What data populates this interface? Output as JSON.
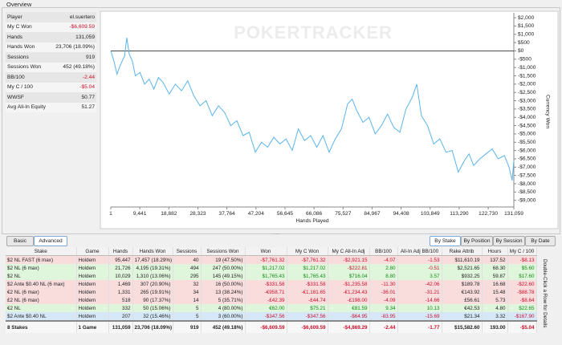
{
  "overview": {
    "title": "Overview",
    "stats": [
      [
        "Player",
        "el.suertero"
      ],
      [
        "My C Won",
        "-$6,609.59"
      ],
      [
        "Hands",
        "131,059"
      ],
      [
        "Hands Won",
        "23,706 (18.09%)"
      ],
      [
        "Sessions",
        "919"
      ],
      [
        "Sessions Won",
        "452 (49.18%)"
      ],
      [
        "BB/100",
        "-2.44"
      ],
      [
        "My C / 100",
        "-$5.04"
      ],
      [
        "WWSF",
        "50.77"
      ],
      [
        "Avg All-In Equity",
        "51.27"
      ]
    ]
  },
  "chart_data": {
    "type": "line",
    "watermark": "POKERTRACKER",
    "x_label": "Hands Played",
    "y_label": "Currency Won",
    "grid": false,
    "xlim": [
      1,
      131059
    ],
    "ylim": [
      -9400,
      2100
    ],
    "xticks": [
      1,
      {
        "value": 9441,
        "label": "9,441"
      },
      {
        "value": 18882,
        "label": "18,882"
      },
      {
        "value": 28323,
        "label": "28,323"
      },
      {
        "value": 37764,
        "label": "37,764"
      },
      {
        "value": 47204,
        "label": "47,204"
      },
      {
        "value": 56645,
        "label": "56,645"
      },
      {
        "value": 66086,
        "label": "66,086"
      },
      {
        "value": 75527,
        "label": "75,527"
      },
      {
        "value": 84967,
        "label": "84,967"
      },
      {
        "value": 94408,
        "label": "94,408"
      },
      {
        "value": 103849,
        "label": "103,849"
      },
      {
        "value": 113290,
        "label": "113,290"
      },
      {
        "value": 122730,
        "label": "122,730"
      },
      {
        "value": 131059,
        "label": "131,059"
      }
    ],
    "yticks": [
      {
        "value": 2000,
        "label": "$2,000"
      },
      {
        "value": 1500,
        "label": "$1,500"
      },
      {
        "value": 1000,
        "label": "$1,000"
      },
      {
        "value": 500,
        "label": "$500"
      },
      {
        "value": 0,
        "label": "$0"
      },
      {
        "value": -500,
        "label": "-$500"
      },
      {
        "value": -1000,
        "label": "-$1,000"
      },
      {
        "value": -1500,
        "label": "-$1,500"
      },
      {
        "value": -2000,
        "label": "-$2,000"
      },
      {
        "value": -2500,
        "label": "-$2,500"
      },
      {
        "value": -3000,
        "label": "-$3,000"
      },
      {
        "value": -3500,
        "label": "-$3,500"
      },
      {
        "value": -4000,
        "label": "-$4,000"
      },
      {
        "value": -4500,
        "label": "-$4,500"
      },
      {
        "value": -5000,
        "label": "-$5,000"
      },
      {
        "value": -5500,
        "label": "-$5,500"
      },
      {
        "value": -6000,
        "label": "-$6,000"
      },
      {
        "value": -6500,
        "label": "-$6,500"
      },
      {
        "value": -7000,
        "label": "-$7,000"
      },
      {
        "value": -7500,
        "label": "-$7,500"
      },
      {
        "value": -8000,
        "label": "-$8,000"
      },
      {
        "value": -8500,
        "label": "-$8,500"
      },
      {
        "value": -9000,
        "label": "-$9,000"
      }
    ],
    "series": [
      {
        "color": "#5ab4ec",
        "x": [
          1,
          1000,
          2000,
          3000,
          4500,
          5200,
          6000,
          7000,
          8000,
          9500,
          11000,
          12500,
          14000,
          15500,
          17000,
          19000,
          21000,
          23000,
          25000,
          27000,
          29000,
          31000,
          33000,
          35000,
          37000,
          39000,
          41000,
          43000,
          45000,
          47000,
          49000,
          51000,
          53000,
          55000,
          57000,
          59000,
          61000,
          63000,
          65000,
          67000,
          69000,
          71000,
          73000,
          75000,
          77000,
          78500,
          80000,
          82000,
          84000,
          86000,
          88000,
          90000,
          92000,
          94000,
          96000,
          98000,
          99500,
          101000,
          103000,
          105000,
          107000,
          109000,
          111000,
          113000,
          115000,
          116500,
          118000,
          120000,
          122000,
          124000,
          126000,
          128000,
          129500,
          130500,
          131059
        ],
        "values": [
          0,
          -600,
          -1400,
          -900,
          -300,
          800,
          -200,
          -600,
          -1500,
          -1300,
          -2000,
          -1700,
          -2300,
          -1600,
          -1900,
          -2600,
          -2000,
          -2400,
          -1800,
          -2700,
          -3300,
          -3000,
          -3900,
          -3300,
          -3700,
          -4500,
          -4200,
          -5100,
          -4900,
          -6100,
          -5500,
          -5800,
          -5200,
          -5600,
          -5300,
          -6000,
          -4700,
          -5400,
          -5100,
          -5800,
          -5100,
          -6100,
          -5300,
          -4700,
          -3200,
          -2900,
          -3600,
          -4300,
          -4000,
          -5000,
          -4500,
          -3800,
          -4600,
          -4900,
          -3500,
          -2800,
          -2000,
          -3900,
          -4500,
          -5600,
          -5300,
          -6100,
          -6000,
          -7300,
          -6600,
          -6200,
          -6900,
          -6500,
          -6200,
          -5900,
          -6500,
          -6300,
          -7000,
          -7800,
          -6600
        ]
      }
    ]
  },
  "controls": {
    "left": [
      "Basic",
      "Advanced"
    ],
    "right": [
      "By Stake",
      "By Position",
      "By Session",
      "By Date"
    ]
  },
  "table": {
    "side_note": "Double-Click a Row for Details",
    "columns": [
      "Stake",
      "Game",
      "Hands",
      "Hands Won",
      "Sessions",
      "Sessions Won",
      "Won",
      "My C Won",
      "My C All-In Adj",
      "BB/100",
      "All-In Adj BB/100",
      "Rake Attrib",
      "Hours",
      "My C / 100"
    ],
    "rows": [
      {
        "bg": "#f9dcdc",
        "cells": [
          "$2 NL FAST (6 max)",
          "Holdem",
          "95,447",
          "17,457 (18.29%)",
          "40",
          "19 (47.50%)",
          "-$7,761.32",
          "-$7,761.32",
          "-$2,921.15",
          "-4.07",
          "-1.53",
          "$11,610.19",
          "137.52",
          "-$8.13"
        ]
      },
      {
        "bg": "#dff5dc",
        "cells": [
          "$2 NL (6 max)",
          "Holdem",
          "21,726",
          "4,195 (19.31%)",
          "494",
          "247 (50.00%)",
          "$1,217.02",
          "$1,217.02",
          "-$222.81",
          "2.80",
          "-0.51",
          "$2,521.65",
          "68.30",
          "$5.60"
        ]
      },
      {
        "bg": "#dff5dc",
        "cells": [
          "$2 NL",
          "Holdem",
          "10,029",
          "1,310 (13.06%)",
          "295",
          "145 (49.15%)",
          "$1,765.43",
          "$1,765.43",
          "$716.04",
          "8.80",
          "3.57",
          "$932.25",
          "59.87",
          "$17.60"
        ]
      },
      {
        "bg": "#f9dcdc",
        "cells": [
          "$2 Ante $0.40 NL (6 max)",
          "Holdem",
          "1,469",
          "307 (20.90%)",
          "32",
          "16 (50.00%)",
          "-$331.58",
          "-$331.58",
          "-$1,235.58",
          "-11.30",
          "-42.06",
          "$189.78",
          "16.68",
          "-$22.60"
        ]
      },
      {
        "bg": "#f9dcdc",
        "cells": [
          "€2 NL (6 max)",
          "Holdem",
          "1,331",
          "265 (19.91%)",
          "34",
          "13 (38.24%)",
          "-€958.71",
          "-€1,181.65",
          "-€1,234.43",
          "-36.01",
          "-31.21",
          "€143.92",
          "15.48",
          "-$88.78"
        ]
      },
      {
        "bg": "#f9dcdc",
        "cells": [
          "£2 NL (6 max)",
          "Holdem",
          "518",
          "90 (17.37%)",
          "14",
          "5 (35.71%)",
          "-£42.39",
          "-£44.74",
          "-£198.00",
          "-4.09",
          "-14.66",
          "£56.61",
          "5.73",
          "-$8.64"
        ]
      },
      {
        "bg": "#dff5dc",
        "cells": [
          "€2 NL",
          "Holdem",
          "332",
          "50 (15.06%)",
          "5",
          "4 (80.00%)",
          "€62.00",
          "$75.21",
          "€81.59",
          "9.34",
          "10.13",
          "€42.53",
          "4.80",
          "$22.65"
        ]
      },
      {
        "bg": "#d6e8f7",
        "cells": [
          "$2 Ante $0.40 NL",
          "Holdem",
          "207",
          "32 (15.46%)",
          "5",
          "3 (60.00%)",
          "-$347.56",
          "-$347.56",
          "-$64.95",
          "-83.95",
          "-15.69",
          "$21.34",
          "3.32",
          "-$167.90"
        ]
      }
    ],
    "total": [
      "8 Stakes",
      "1 Game",
      "131,059",
      "23,706 (18.09%)",
      "919",
      "452 (49.18%)",
      "-$6,609.59",
      "-$6,609.59",
      "-$4,869.29",
      "-2.44",
      "-1.77",
      "$15,582.60",
      "193.00",
      "-$5.04"
    ]
  }
}
